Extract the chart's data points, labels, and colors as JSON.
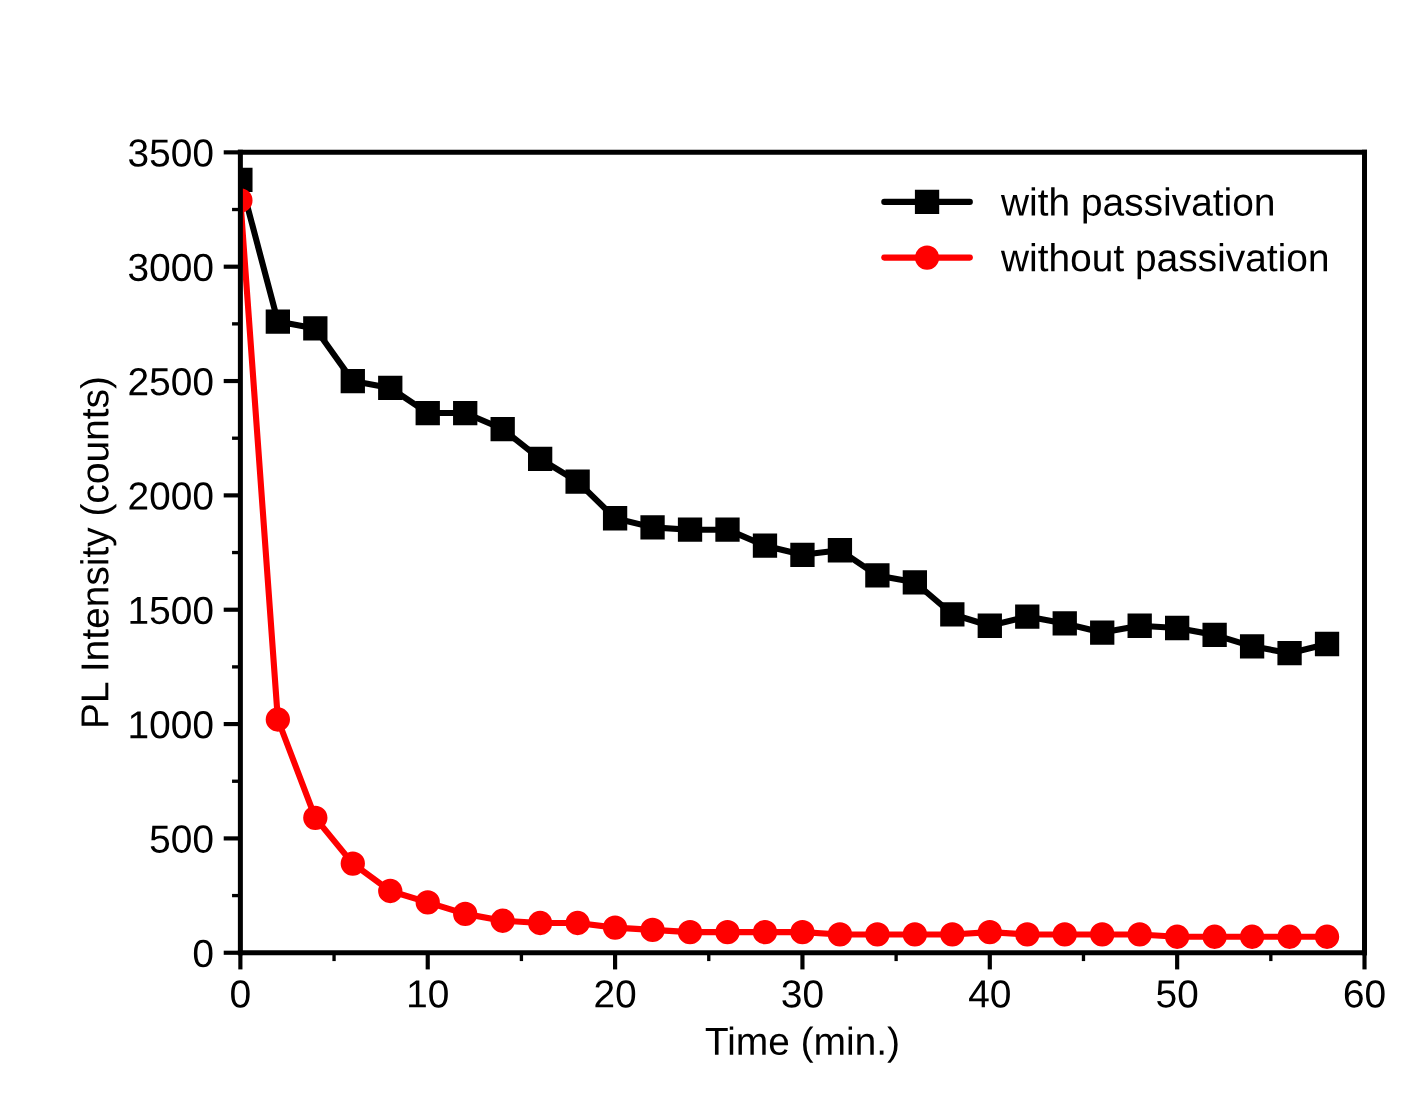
{
  "chart_data": {
    "type": "line",
    "xlabel": "Time (min.)",
    "ylabel": "PL Intensity (counts)",
    "x": [
      0,
      2,
      4,
      6,
      8,
      10,
      12,
      14,
      16,
      18,
      20,
      22,
      24,
      26,
      28,
      30,
      32,
      34,
      36,
      38,
      40,
      42,
      44,
      46,
      48,
      50,
      52,
      54,
      56,
      58
    ],
    "series": [
      {
        "name": "with passivation",
        "color": "#000000",
        "marker": "square",
        "values": [
          3380,
          2760,
          2730,
          2500,
          2470,
          2360,
          2360,
          2290,
          2160,
          2060,
          1900,
          1860,
          1850,
          1850,
          1780,
          1740,
          1760,
          1650,
          1620,
          1480,
          1430,
          1470,
          1440,
          1400,
          1430,
          1420,
          1390,
          1340,
          1310,
          1350
        ]
      },
      {
        "name": "without passivation",
        "color": "#ff0000",
        "marker": "circle",
        "values": [
          3290,
          1020,
          590,
          390,
          270,
          220,
          170,
          140,
          130,
          130,
          110,
          100,
          90,
          90,
          90,
          90,
          80,
          80,
          80,
          80,
          90,
          80,
          80,
          80,
          80,
          70,
          70,
          70,
          70,
          70
        ]
      }
    ],
    "xlim": [
      0,
      60
    ],
    "xticks": [
      0,
      10,
      20,
      30,
      40,
      50,
      60
    ],
    "ylim": [
      0,
      3500
    ],
    "yticks": [
      0,
      500,
      1000,
      1500,
      2000,
      2500,
      3000,
      3500
    ],
    "grid": false,
    "legend": "top right",
    "line_style": "solid"
  }
}
